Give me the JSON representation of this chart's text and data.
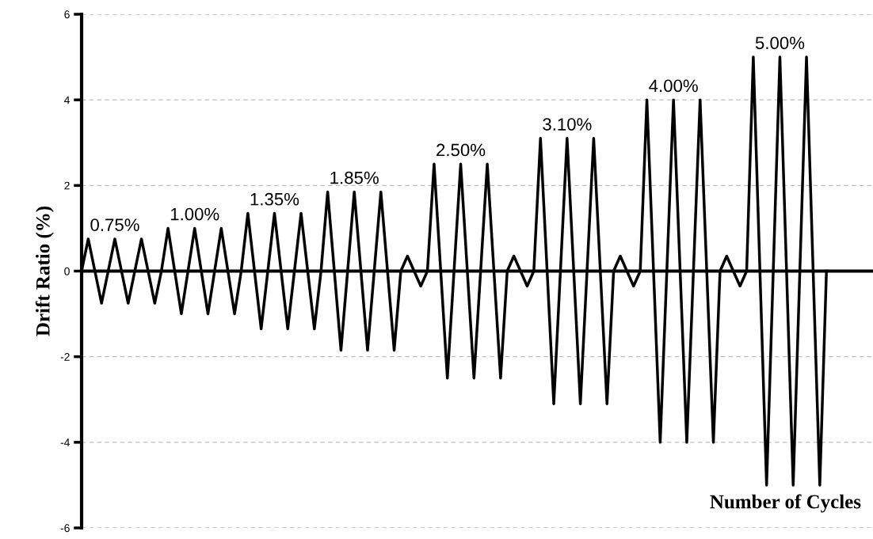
{
  "chart_data": {
    "type": "line",
    "ylabel": "Drift Ratio (%)",
    "xlabel": "Number of Cycles",
    "categories": [
      null,
      null,
      null,
      null,
      null,
      null,
      null,
      null,
      null,
      null,
      null,
      null,
      null,
      null,
      null,
      null,
      null,
      null,
      null,
      null,
      null,
      null,
      null,
      null,
      null,
      null,
      null,
      null,
      null,
      null,
      null,
      null,
      null,
      null,
      null,
      null,
      null,
      null,
      null,
      null,
      null,
      null,
      null,
      null,
      null,
      null,
      null,
      null,
      null,
      null,
      null,
      null,
      null,
      null,
      null,
      null,
      null,
      null,
      null,
      null,
      null,
      null,
      null,
      null,
      null,
      null,
      null,
      null,
      null,
      null,
      null,
      null,
      null,
      null,
      null,
      null,
      null,
      null,
      null,
      null,
      null,
      null,
      null,
      null,
      null,
      null,
      null,
      null,
      null,
      null,
      null,
      null,
      null,
      null,
      null,
      null,
      null,
      null,
      null,
      null,
      null,
      null,
      null,
      null,
      null,
      null,
      null,
      null,
      null,
      null,
      null,
      null,
      null
    ],
    "series": [
      {
        "color": "#000000",
        "values": [
          0,
          0.75,
          0,
          -0.75,
          0,
          0.75,
          0,
          -0.75,
          0,
          0.75,
          0,
          -0.75,
          0,
          1.0,
          0,
          -1.0,
          0,
          1.0,
          0,
          -1.0,
          0,
          1.0,
          0,
          -1.0,
          0,
          1.35,
          0,
          -1.35,
          0,
          1.35,
          0,
          -1.35,
          0,
          1.35,
          0,
          -1.35,
          0,
          1.85,
          0,
          -1.85,
          0,
          1.85,
          0,
          -1.85,
          0,
          1.85,
          0,
          -1.85,
          0,
          0.35,
          0,
          -0.35,
          0,
          2.5,
          0,
          -2.5,
          0,
          2.5,
          0,
          -2.5,
          0,
          2.5,
          0,
          -2.5,
          0,
          0.35,
          0,
          -0.35,
          0,
          3.1,
          0,
          -3.1,
          0,
          3.1,
          0,
          -3.1,
          0,
          3.1,
          0,
          -3.1,
          0,
          0.35,
          0,
          -0.35,
          0,
          4.0,
          0,
          -4.0,
          0,
          4.0,
          0,
          -4.0,
          0,
          4.0,
          0,
          -4.0,
          0,
          0.35,
          0,
          -0.35,
          0,
          5.0,
          0,
          -5.0,
          0,
          5.0,
          0,
          -5.0,
          0,
          5.0,
          0,
          -5.0,
          0
        ]
      }
    ],
    "ylim": [
      -6,
      6
    ],
    "yticks": [
      -6,
      -4,
      -2,
      0,
      2,
      4,
      6
    ],
    "grid": "y",
    "marker": "none",
    "line_style": "solid",
    "annotations": [
      {
        "text": "0.75%",
        "y": 0.75
      },
      {
        "text": "1.00%",
        "y": 1.0
      },
      {
        "text": "1.35%",
        "y": 1.35
      },
      {
        "text": "1.85%",
        "y": 1.85
      },
      {
        "text": "2.50%",
        "y": 2.5
      },
      {
        "text": "3.10%",
        "y": 3.1
      },
      {
        "text": "4.00%",
        "y": 4.0
      },
      {
        "text": "5.00%",
        "y": 5.0
      }
    ]
  }
}
